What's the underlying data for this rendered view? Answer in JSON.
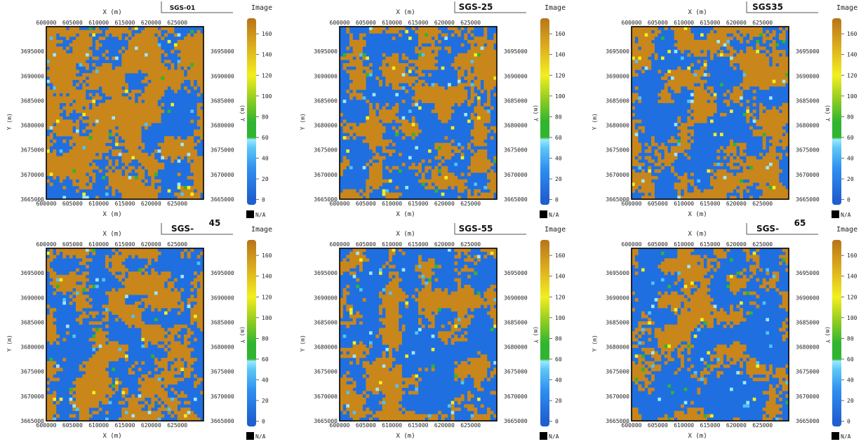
{
  "colors": {
    "sand": "#c8861b",
    "shale": "#1f6fe0",
    "accent_light": "#4fc3f7",
    "accent_cyan": "#9be8ff",
    "accent_green": "#2fb52f",
    "accent_yellow": "#f2ef1f",
    "frame": "#000000"
  },
  "colorbar": {
    "title": "Image",
    "ticks": [
      "0",
      "20",
      "40",
      "60",
      "80",
      "100",
      "120",
      "140",
      "160"
    ],
    "na_label": "N/A",
    "stops": [
      {
        "value": 0,
        "color": "#1f5fd0"
      },
      {
        "value": 30,
        "color": "#2f8ff0"
      },
      {
        "value": 50,
        "color": "#5cc8f5"
      },
      {
        "value": 58,
        "color": "#9be8ff"
      },
      {
        "value": 60,
        "color": "#2fb52f"
      },
      {
        "value": 75,
        "color": "#2fb52f"
      },
      {
        "value": 100,
        "color": "#9fd020"
      },
      {
        "value": 120,
        "color": "#f2ef1f"
      },
      {
        "value": 150,
        "color": "#d9a81d"
      },
      {
        "value": 175,
        "color": "#b8741a"
      }
    ],
    "range": [
      -5,
      175
    ]
  },
  "axes": {
    "x_label": "X (m)",
    "y_label": "Y (m)",
    "x_ticks": [
      "600000",
      "605000",
      "610000",
      "615000",
      "620000",
      "625000"
    ],
    "y_ticks": [
      "3695000",
      "3690000",
      "3685000",
      "3680000",
      "3675000",
      "3670000",
      "3665000"
    ],
    "y_label_right": "(m) Y"
  },
  "chart_data": [
    {
      "type": "heatmap",
      "title": "SGS-01",
      "title_suffix": "",
      "xlim": [
        600000,
        630000
      ],
      "ylim": [
        3665000,
        3700000
      ],
      "grid": false,
      "legend": "right",
      "value_classes": [
        10,
        166
      ],
      "sand_fraction": 0.58
    },
    {
      "type": "heatmap",
      "title": "SGS-25",
      "title_suffix": "",
      "xlim": [
        600000,
        630000
      ],
      "ylim": [
        3665000,
        3700000
      ],
      "grid": false,
      "legend": "right",
      "value_classes": [
        10,
        166
      ],
      "sand_fraction": 0.46
    },
    {
      "type": "heatmap",
      "title": "SGS35",
      "title_suffix": "",
      "xlim": [
        600000,
        630000
      ],
      "ylim": [
        3665000,
        3700000
      ],
      "grid": false,
      "legend": "right",
      "value_classes": [
        10,
        166
      ],
      "sand_fraction": 0.5
    },
    {
      "type": "heatmap",
      "title": "SGS-",
      "title_suffix": "45",
      "xlim": [
        600000,
        630000
      ],
      "ylim": [
        3665000,
        3700000
      ],
      "grid": false,
      "legend": "right",
      "value_classes": [
        10,
        166
      ],
      "sand_fraction": 0.55
    },
    {
      "type": "heatmap",
      "title": "SGS-55",
      "title_suffix": "",
      "xlim": [
        600000,
        630000
      ],
      "ylim": [
        3665000,
        3700000
      ],
      "grid": false,
      "legend": "right",
      "value_classes": [
        10,
        166
      ],
      "sand_fraction": 0.47
    },
    {
      "type": "heatmap",
      "title": "SGS-",
      "title_suffix": "65",
      "xlim": [
        600000,
        630000
      ],
      "ylim": [
        3665000,
        3700000
      ],
      "grid": false,
      "legend": "right",
      "value_classes": [
        10,
        166
      ],
      "sand_fraction": 0.42
    }
  ]
}
